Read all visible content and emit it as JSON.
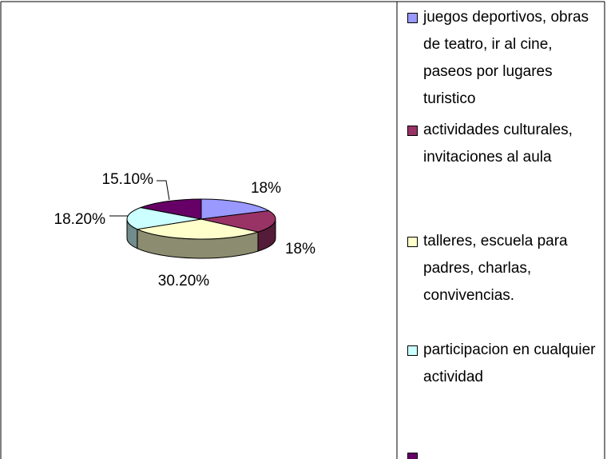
{
  "chart_data": {
    "type": "pie3d",
    "categories": [
      "juegos deportivos, obras de teatro, ir al cine, paseos por lugares turistico",
      "actividades culturales, invitaciones al aula",
      "talleres, escuela para padres, charlas, convivencias.",
      "participacion en cualquier actividad",
      null
    ],
    "values": [
      18,
      18,
      30.2,
      18.2,
      15.1
    ],
    "value_labels": [
      "18%",
      "18%",
      "30.20%",
      "18.20%",
      "15.10%"
    ],
    "colors": [
      "#9999ff",
      "#993366",
      "#ffffcc",
      "#ccffff",
      "#660066"
    ],
    "legend": "right"
  }
}
